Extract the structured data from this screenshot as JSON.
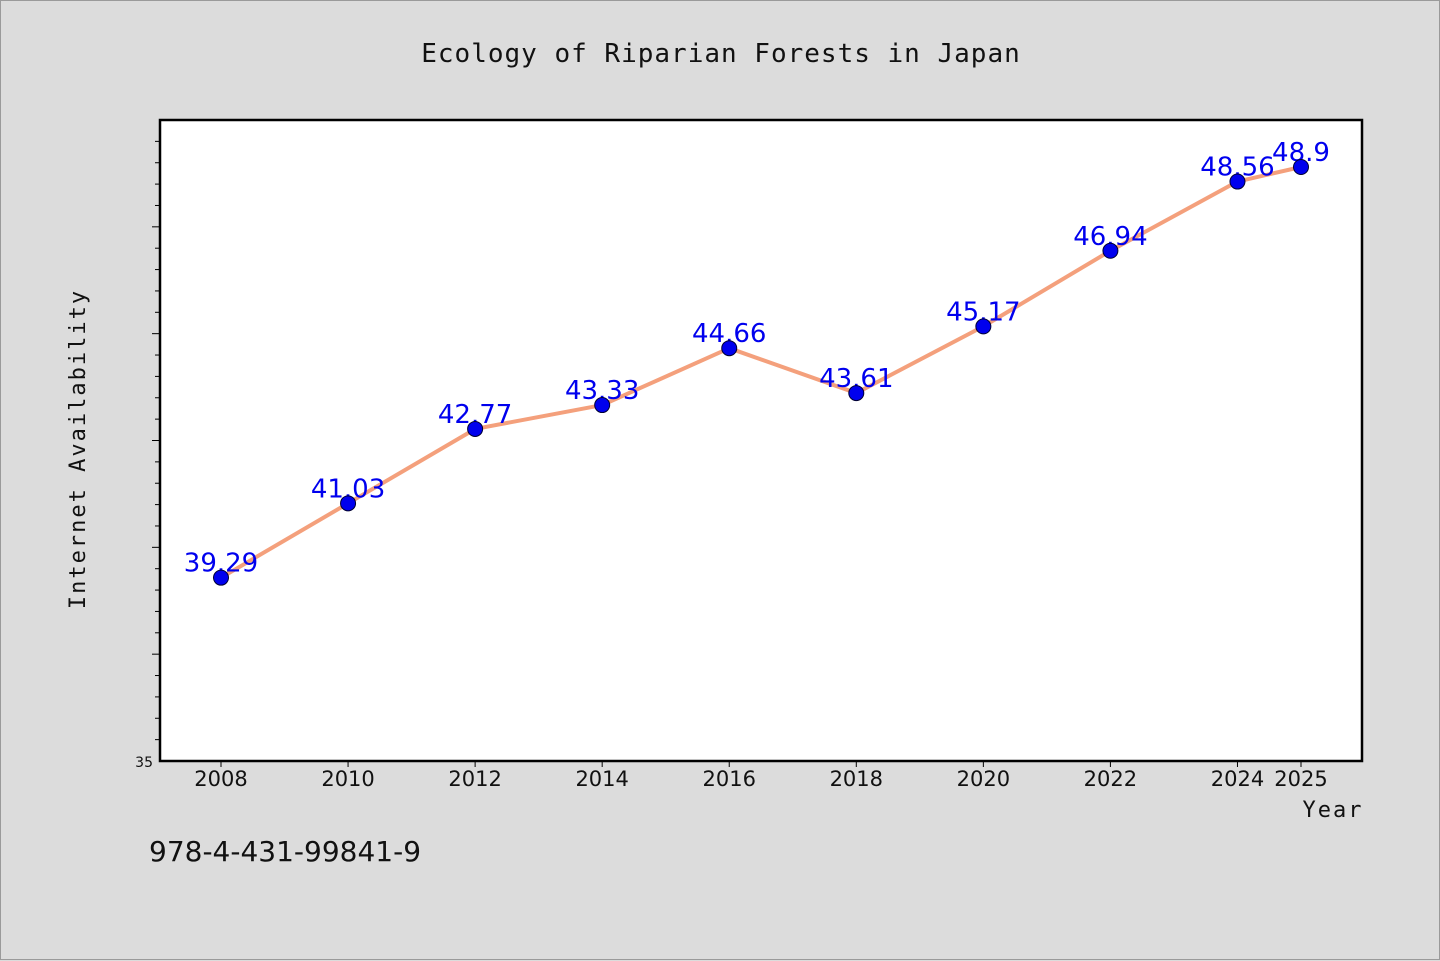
{
  "chart_data": {
    "type": "line",
    "title": "Ecology of Riparian Forests in Japan",
    "xlabel": "Year",
    "ylabel": "Internet Availability",
    "categories": [
      "2008",
      "2010",
      "2012",
      "2014",
      "2016",
      "2018",
      "2020",
      "2022",
      "2024",
      "2025"
    ],
    "x": [
      2008,
      2010,
      2012,
      2014,
      2016,
      2018,
      2020,
      2022,
      2024,
      2025
    ],
    "series": [
      {
        "values": [
          39.29,
          41.03,
          42.77,
          43.33,
          44.66,
          43.61,
          45.17,
          46.94,
          48.56,
          48.9
        ],
        "data_labels": [
          "39.29",
          "41.03",
          "42.77",
          "43.33",
          "44.66",
          "43.61",
          "45.17",
          "46.94",
          "48.56",
          "48.9"
        ],
        "line_color": "#f4a07c",
        "marker_color": "#0000ee"
      }
    ],
    "ylim": [
      35,
      50
    ],
    "yticks_labeled": [
      "35"
    ],
    "grid": false,
    "legend": "none"
  },
  "footer": {
    "isbn": "978-4-431-99841-9"
  }
}
